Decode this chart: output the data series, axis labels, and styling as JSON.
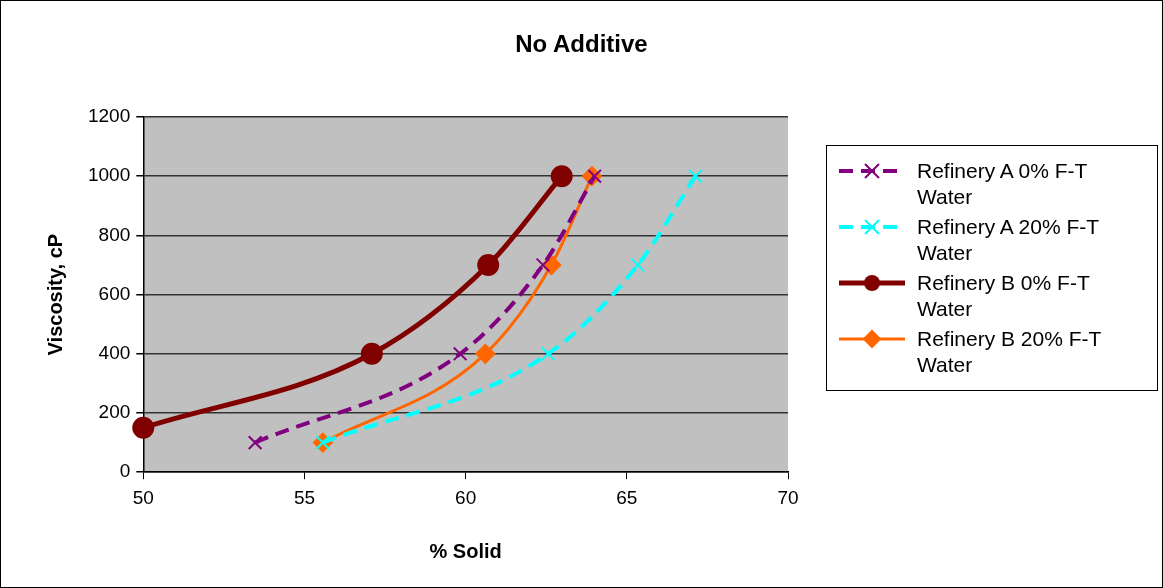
{
  "chart_data": {
    "type": "line",
    "title": "No Additive",
    "xlabel": "% Solid",
    "ylabel": "Viscosity, cP",
    "xlim": [
      50,
      70
    ],
    "xticks": [
      50,
      55,
      60,
      65,
      70
    ],
    "ylim": [
      0,
      1200
    ],
    "yticks": [
      0,
      200,
      400,
      600,
      800,
      1000,
      1200
    ],
    "grid": "y",
    "legend": "right",
    "series": [
      {
        "name": "Refinery A 0% F-T Water",
        "color": "#800080",
        "marker": "cross",
        "line_style": "dashed",
        "x": [
          53.47,
          59.83,
          62.4,
          64.0
        ],
        "values": [
          100,
          400,
          700,
          1000
        ]
      },
      {
        "name": "Refinery A 20% F-T Water",
        "color": "#00ffff",
        "marker": "cross",
        "line_style": "dashed",
        "x": [
          55.57,
          62.56,
          65.34,
          67.13
        ],
        "values": [
          100,
          400,
          700,
          1000
        ]
      },
      {
        "name": "Refinery B 0% F-T Water",
        "color": "#800000",
        "marker": "circle",
        "line_style": "solid",
        "x": [
          50,
          57.09,
          60.7,
          62.98
        ],
        "values": [
          150,
          400,
          700,
          1000
        ]
      },
      {
        "name": "Refinery B 20% F-T Water",
        "color": "#ff6600",
        "marker": "diamond",
        "line_style": "solid",
        "x": [
          55.57,
          60.61,
          62.66,
          63.92
        ],
        "values": [
          100,
          400,
          700,
          1000
        ]
      }
    ]
  }
}
